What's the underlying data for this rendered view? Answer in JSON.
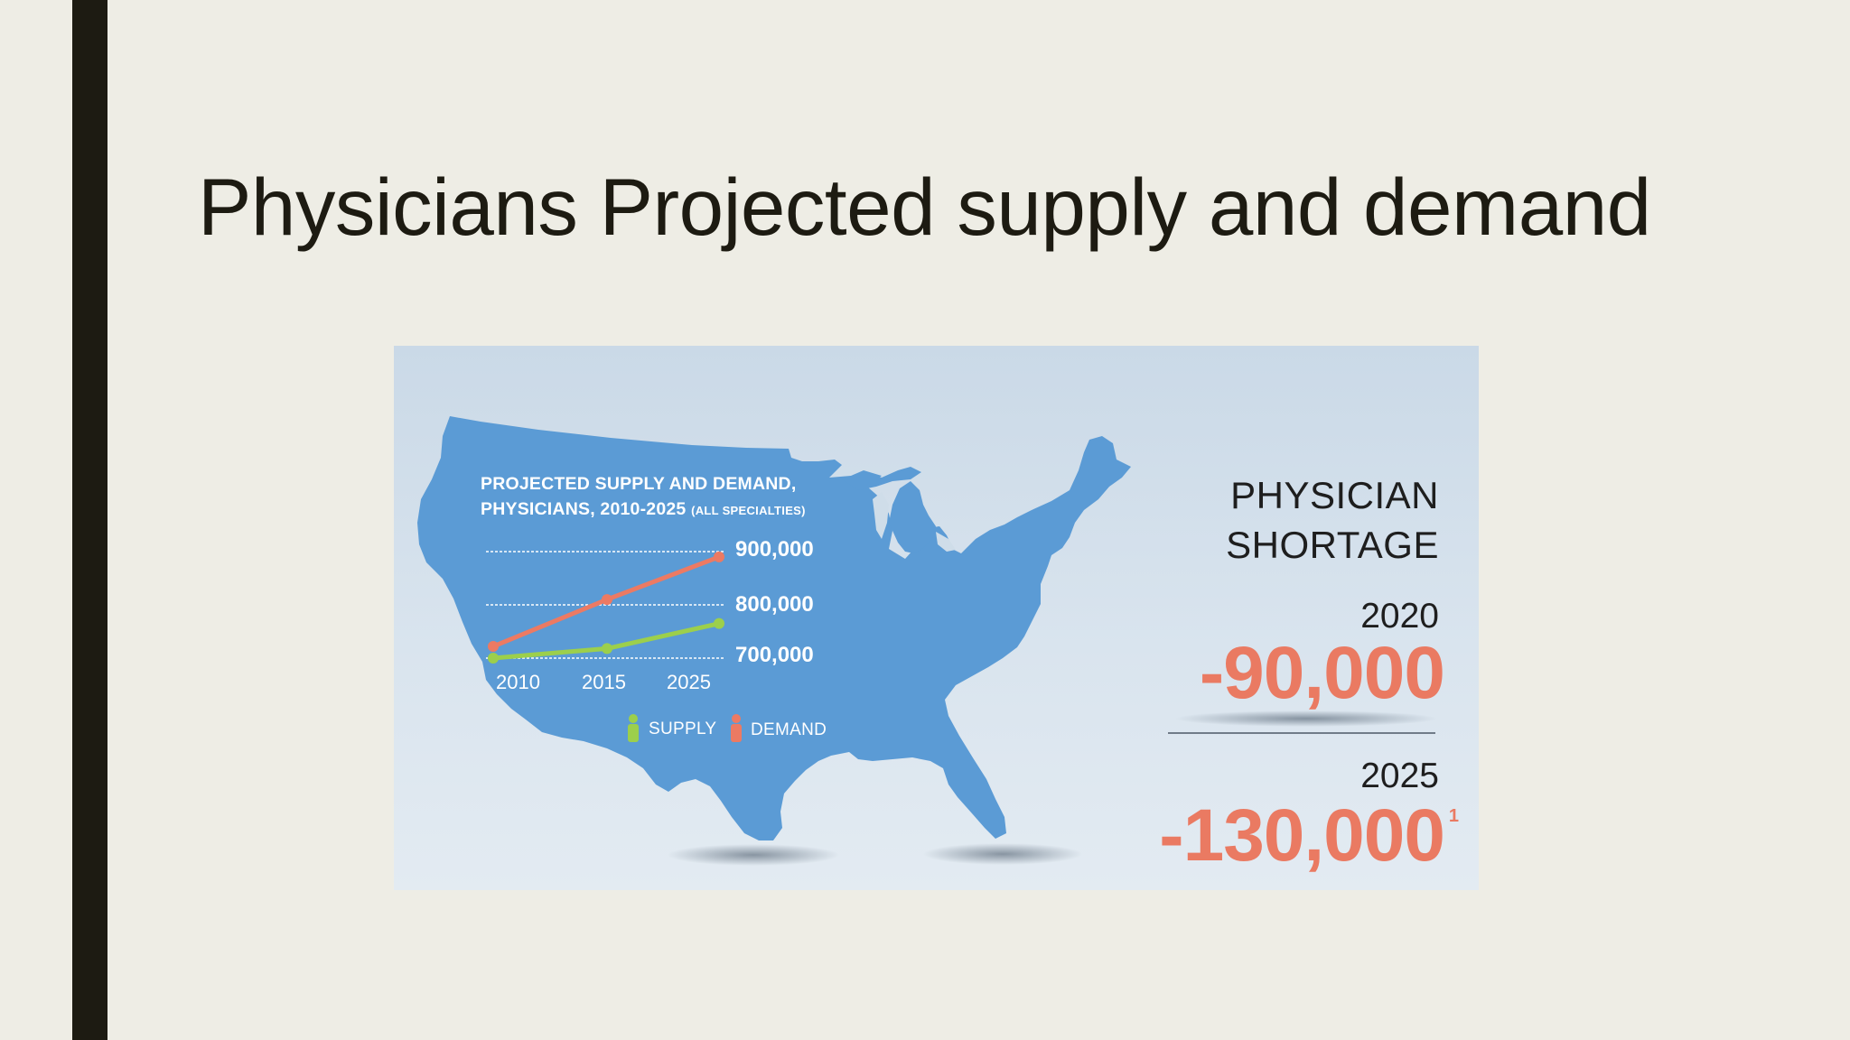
{
  "slide": {
    "title": "Physicians Projected supply and demand"
  },
  "colors": {
    "background": "#eeede5",
    "accent_bar": "#1d1b12",
    "map": "#5b9bd5",
    "supply": "#9ccf4c",
    "demand": "#ec7a63",
    "shortage_value": "#ea7a62"
  },
  "chart_data": {
    "type": "line",
    "title_line1": "PROJECTED SUPPLY AND DEMAND,",
    "title_line2": "PHYSICIANS, 2010-2025",
    "title_qualifier": "(ALL SPECIALTIES)",
    "x": [
      "2010",
      "2015",
      "2025"
    ],
    "y_ticks": [
      "900,000",
      "800,000",
      "700,000"
    ],
    "y_tick_values": [
      900000,
      800000,
      700000
    ],
    "ylim": [
      700000,
      900000
    ],
    "grid": true,
    "legend_position": "bottom",
    "series": [
      {
        "name": "SUPPLY",
        "icon": "person-icon",
        "color": "#9ccf4c",
        "values": [
          700000,
          718000,
          765000
        ]
      },
      {
        "name": "DEMAND",
        "icon": "person-icon",
        "color": "#ec7a63",
        "values": [
          722000,
          810000,
          890000
        ]
      }
    ]
  },
  "shortage": {
    "title_line1": "PHYSICIAN",
    "title_line2": "SHORTAGE",
    "items": [
      {
        "year": "2020",
        "value": "-90,000",
        "footnote": ""
      },
      {
        "year": "2025",
        "value": "-130,000",
        "footnote": "1"
      }
    ]
  }
}
